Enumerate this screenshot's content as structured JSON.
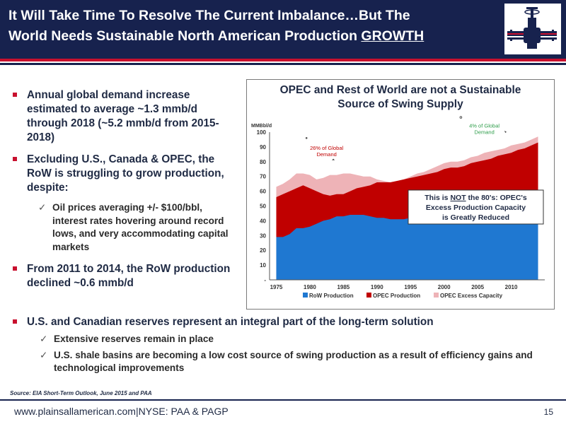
{
  "header": {
    "title_line1": "It Will Take Time To Resolve The Current Imbalance…But The",
    "title_line2_prefix": "World Needs Sustainable North American Production ",
    "title_line2_underlined": "GROWTH"
  },
  "left_bullets": [
    "Annual global demand increase estimated to average ~1.3 mmb/d through 2018 (~5.2 mmb/d from 2015-2018)",
    "Excluding U.S., Canada & OPEC, the RoW is struggling to grow production, despite:"
  ],
  "left_sub": "Oil prices averaging +/- $100/bbl, interest rates hovering around record lows, and very accommodating capital markets",
  "left_bullet_3": "From 2011 to 2014, the RoW production declined ~0.6 mmb/d",
  "bottom": {
    "bullet": "U.S. and Canadian reserves represent an integral part of the long-term solution",
    "subs": [
      "Extensive reserves remain in place",
      "U.S. shale basins are becoming a low cost source of swing production as a result of efficiency gains and technological improvements"
    ]
  },
  "checkmark": "✓",
  "source": "Source: EIA Short-Term Outlook, June 2015 and PAA",
  "footer": {
    "text": "www.plainsallamerican.com|NYSE: PAA & PAGP",
    "page": "15"
  },
  "colors": {
    "navy": "#17224e",
    "red": "#c8102e",
    "row": "#1f78d1",
    "opec": "#c00000",
    "excess": "#eeb3b7"
  },
  "chart_data": {
    "type": "area",
    "title_line1": "OPEC and Rest of World are not a Sustainable",
    "title_line2": "Source of Swing Supply",
    "ylabel": "MMBbl/d",
    "ylim": [
      0,
      100
    ],
    "yticks": [
      "-",
      "10",
      "20",
      "30",
      "40",
      "50",
      "60",
      "70",
      "80",
      "90",
      "100"
    ],
    "xticks": [
      "1975",
      "1980",
      "1985",
      "1990",
      "1995",
      "2000",
      "2005",
      "2010"
    ],
    "x": [
      1975,
      1976,
      1977,
      1978,
      1979,
      1980,
      1981,
      1982,
      1983,
      1984,
      1985,
      1986,
      1987,
      1988,
      1989,
      1990,
      1991,
      1992,
      1993,
      1994,
      1995,
      1996,
      1997,
      1998,
      1999,
      2000,
      2001,
      2002,
      2003,
      2004,
      2005,
      2006,
      2007,
      2008,
      2009,
      2010,
      2011,
      2012,
      2013,
      2014
    ],
    "series": [
      {
        "name": "RoW Production",
        "values": [
          29,
          29,
          31,
          35,
          35,
          36,
          38,
          40,
          41,
          43,
          43,
          44,
          44,
          44,
          43,
          42,
          42,
          41,
          41,
          41,
          42,
          42,
          43,
          44,
          44,
          45,
          46,
          47,
          48,
          49,
          49,
          49,
          50,
          50,
          50,
          51,
          52,
          53,
          54,
          56
        ]
      },
      {
        "name": "OPEC Production",
        "values": [
          56,
          58,
          60,
          62,
          64,
          62,
          60,
          58,
          57,
          58,
          58,
          60,
          62,
          63,
          64,
          66,
          66,
          66,
          67,
          68,
          69,
          70,
          71,
          72,
          73,
          75,
          76,
          76,
          77,
          79,
          80,
          81,
          82,
          84,
          85,
          86,
          88,
          89,
          91,
          93
        ]
      },
      {
        "name": "OPEC Excess Capacity",
        "values": [
          63,
          65,
          68,
          72,
          72,
          71,
          68,
          69,
          71,
          71,
          72,
          72,
          71,
          70,
          70,
          68,
          67,
          66,
          67,
          68,
          70,
          72,
          73,
          75,
          77,
          79,
          80,
          80,
          81,
          83,
          84,
          86,
          87,
          88,
          89,
          91,
          92,
          93,
          95,
          97
        ]
      }
    ],
    "annotations": [
      {
        "text_line1": "26% of Global",
        "text_line2": "Demand",
        "x": 1982.5,
        "y": 88
      },
      {
        "text_line1": "4% of Global",
        "text_line2": "Demand",
        "x": 2006,
        "y": 103
      }
    ],
    "callout": {
      "line1_prefix": "This is ",
      "line1_underlined": "NOT",
      "line1_suffix": " the 80's: OPEC's",
      "line2": "Excess Production Capacity",
      "line3": "is Greatly Reduced"
    },
    "legend_position": "bottom",
    "grid": false
  }
}
